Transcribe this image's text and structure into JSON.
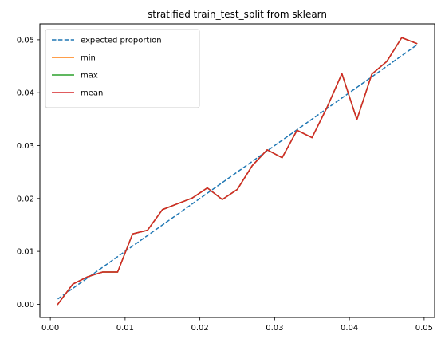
{
  "chart_data": {
    "type": "line",
    "title": "stratified train_test_split from sklearn",
    "xlabel": "",
    "ylabel": "",
    "xlim": [
      -0.0014,
      0.0514
    ],
    "ylim": [
      -0.0025,
      0.053
    ],
    "x_ticks": [
      {
        "value": 0.0,
        "label": "0.00"
      },
      {
        "value": 0.01,
        "label": "0.01"
      },
      {
        "value": 0.02,
        "label": "0.02"
      },
      {
        "value": 0.03,
        "label": "0.03"
      },
      {
        "value": 0.04,
        "label": "0.04"
      },
      {
        "value": 0.05,
        "label": "0.05"
      }
    ],
    "y_ticks": [
      {
        "value": 0.0,
        "label": "0.00"
      },
      {
        "value": 0.01,
        "label": "0.01"
      },
      {
        "value": 0.02,
        "label": "0.02"
      },
      {
        "value": 0.03,
        "label": "0.03"
      },
      {
        "value": 0.04,
        "label": "0.04"
      },
      {
        "value": 0.05,
        "label": "0.05"
      }
    ],
    "grid": false,
    "legend_position": "top-left",
    "x": [
      0.001,
      0.003,
      0.005,
      0.007,
      0.009,
      0.011,
      0.013,
      0.015,
      0.017,
      0.019,
      0.021,
      0.023,
      0.025,
      0.027,
      0.029,
      0.031,
      0.033,
      0.035,
      0.037,
      0.039,
      0.041,
      0.043,
      0.045,
      0.047,
      0.049
    ],
    "series": [
      {
        "name": "expected proportion",
        "color": "#1f77b4",
        "dashed": true,
        "values": [
          0.001,
          0.003,
          0.005,
          0.007,
          0.009,
          0.011,
          0.013,
          0.015,
          0.017,
          0.019,
          0.021,
          0.023,
          0.025,
          0.027,
          0.029,
          0.031,
          0.033,
          0.035,
          0.037,
          0.039,
          0.041,
          0.043,
          0.045,
          0.047,
          0.049
        ]
      },
      {
        "name": "min",
        "color": "#ff7f0e",
        "dashed": false,
        "values": [
          0.0,
          0.0038,
          0.0052,
          0.0061,
          0.0061,
          0.0133,
          0.014,
          0.0179,
          0.019,
          0.0201,
          0.022,
          0.0198,
          0.0217,
          0.0262,
          0.0292,
          0.0277,
          0.0329,
          0.0315,
          0.0372,
          0.0436,
          0.0349,
          0.0435,
          0.0459,
          0.0504,
          0.0493
        ]
      },
      {
        "name": "max",
        "color": "#2ca02c",
        "dashed": false,
        "values": [
          0.0,
          0.0038,
          0.0052,
          0.0061,
          0.0061,
          0.0133,
          0.014,
          0.0179,
          0.019,
          0.0201,
          0.022,
          0.0198,
          0.0217,
          0.0262,
          0.0292,
          0.0277,
          0.0329,
          0.0315,
          0.0372,
          0.0436,
          0.0349,
          0.0435,
          0.0459,
          0.0504,
          0.0493
        ]
      },
      {
        "name": "mean",
        "color": "#d62728",
        "dashed": false,
        "values": [
          0.0,
          0.0038,
          0.0052,
          0.0061,
          0.0061,
          0.0133,
          0.014,
          0.0179,
          0.019,
          0.0201,
          0.022,
          0.0198,
          0.0217,
          0.0262,
          0.0292,
          0.0277,
          0.0329,
          0.0315,
          0.0372,
          0.0436,
          0.0349,
          0.0435,
          0.0459,
          0.0504,
          0.0493
        ]
      }
    ]
  }
}
